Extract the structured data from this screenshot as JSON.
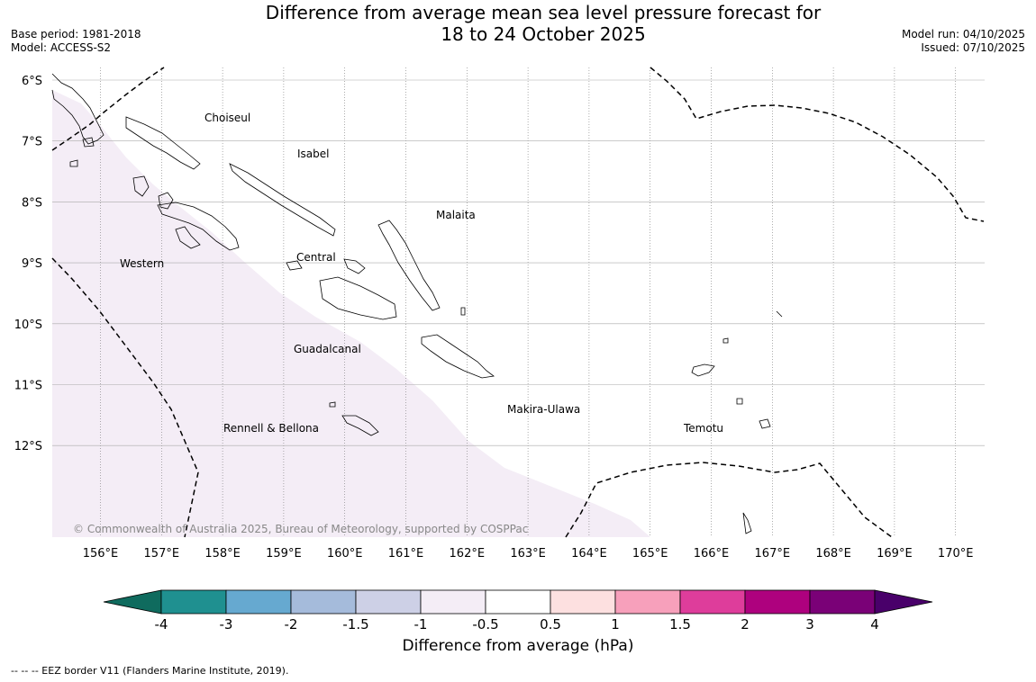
{
  "title_line1": "Difference from average mean sea level pressure forecast for",
  "title_line2": "18 to 24 October 2025",
  "meta_left": {
    "base_period": "Base period: 1981-2018",
    "model": "Model: ACCESS-S2"
  },
  "meta_right": {
    "model_run": "Model run: 04/10/2025",
    "issued": "Issued: 07/10/2025"
  },
  "copyright": "© Commonwealth of Australia 2025, Bureau of Meteorology, supported by COSPPac",
  "lat_labels": [
    "6°S",
    "7°S",
    "8°S",
    "9°S",
    "10°S",
    "11°S",
    "12°S"
  ],
  "lon_labels": [
    "156°E",
    "157°E",
    "158°E",
    "159°E",
    "160°E",
    "161°E",
    "162°E",
    "163°E",
    "164°E",
    "165°E",
    "166°E",
    "167°E",
    "168°E",
    "169°E",
    "170°E"
  ],
  "regions": [
    "Choiseul",
    "Isabel",
    "Malaita",
    "Western",
    "Central",
    "Guadalcanal",
    "Makira-Ulawa",
    "Rennell & Bellona",
    "Temotu"
  ],
  "colorbar": {
    "label": "Difference from average (hPa)",
    "tick_labels": [
      "-4",
      "-3",
      "-2",
      "-1.5",
      "-1",
      "-0.5",
      "0.5",
      "1",
      "1.5",
      "2",
      "3",
      "4"
    ],
    "colors": [
      "#0f6b5e",
      "#1f9090",
      "#66a9d0",
      "#a5bbdb",
      "#cdd0e6",
      "#f4edf6",
      "#ffffff",
      "#fde0e0",
      "#f7a0bb",
      "#de3d9b",
      "#ae017e",
      "#7a0177",
      "#49006a"
    ]
  },
  "shading_color": "#f4edf6",
  "footnote": "--  --  -- EEZ border V11 (Flanders Marine Institute, 2019)."
}
